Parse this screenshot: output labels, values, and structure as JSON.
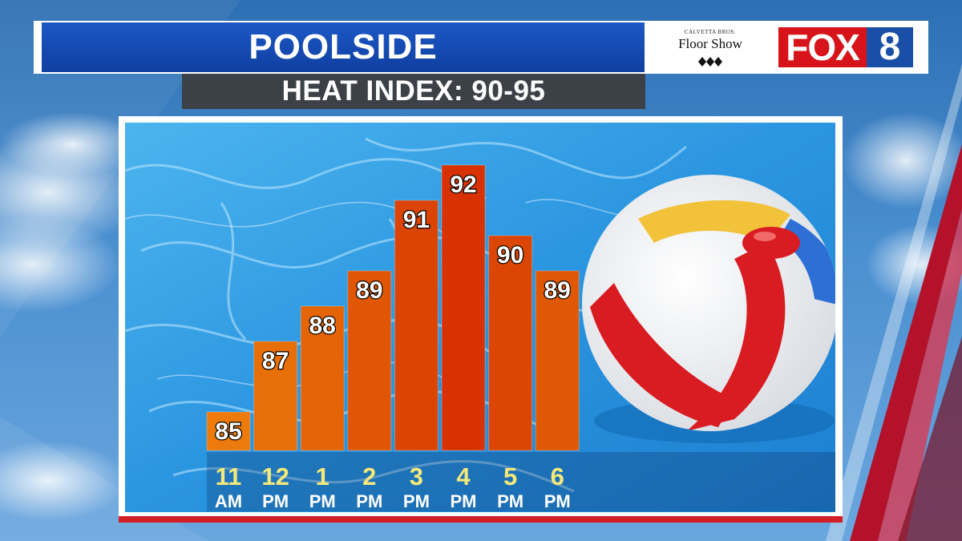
{
  "header": {
    "title": "POOLSIDE",
    "subtitle": "HEAT INDEX: 90-95"
  },
  "sponsor": {
    "small_text": "CALVETTA BROS.",
    "name": "Floor Show"
  },
  "station_logo": {
    "word": "FOX",
    "number": "8",
    "word_color": "#d8141b",
    "number_color": "#1a4fa8"
  },
  "colors": {
    "title_bar": "#1c58c6",
    "subtitle_bar": "#3c4148",
    "tick_hour": "#f4e97a",
    "accent_rule": "#d21f26"
  },
  "chart_data": {
    "type": "bar",
    "title": "POOLSIDE",
    "subtitle": "HEAT INDEX: 90-95",
    "categories": [
      "11 AM",
      "12 PM",
      "1 PM",
      "2 PM",
      "3 PM",
      "4 PM",
      "5 PM",
      "6 PM"
    ],
    "hour_labels": [
      "11",
      "12",
      "1",
      "2",
      "3",
      "4",
      "5",
      "6"
    ],
    "ampm_labels": [
      "AM",
      "PM",
      "PM",
      "PM",
      "PM",
      "PM",
      "PM",
      "PM"
    ],
    "values": [
      85,
      87,
      88,
      89,
      91,
      92,
      90,
      89
    ],
    "bar_colors": [
      "#ec7a0c",
      "#e86e08",
      "#e46406",
      "#e05604",
      "#dc4403",
      "#d83202",
      "#dc4604",
      "#e05806"
    ],
    "ylim": [
      84,
      93
    ],
    "grid": false,
    "legend": "none",
    "data_labels": true
  }
}
